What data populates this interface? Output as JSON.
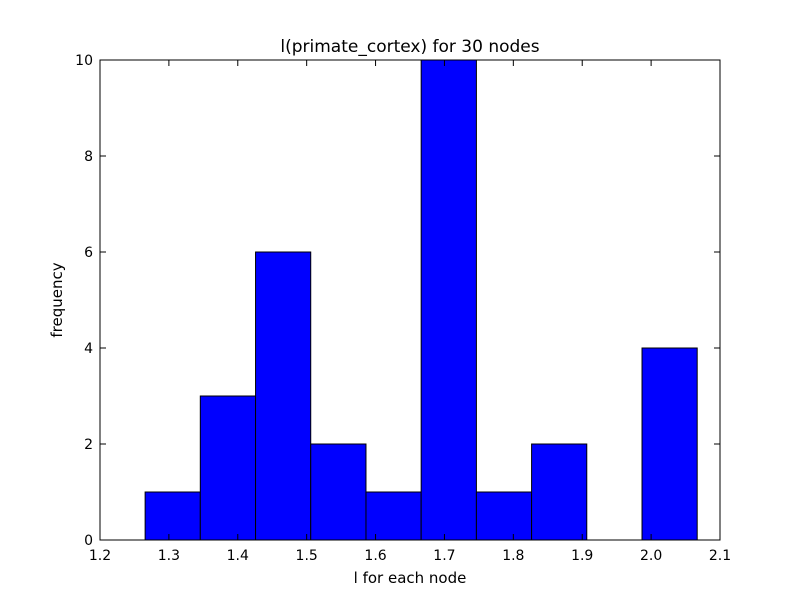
{
  "chart_data": {
    "type": "bar",
    "title": "l(primate_cortex) for 30 nodes",
    "xlabel": "l for each node",
    "ylabel": "frequency",
    "xlim": [
      1.2,
      2.1
    ],
    "ylim": [
      0,
      10
    ],
    "xticks": [
      1.2,
      1.3,
      1.4,
      1.5,
      1.6,
      1.7,
      1.8,
      1.9,
      2.0,
      2.1
    ],
    "yticks": [
      0,
      2,
      4,
      6,
      8,
      10
    ],
    "xtick_labels": [
      "1.2",
      "1.3",
      "1.4",
      "1.5",
      "1.6",
      "1.7",
      "1.8",
      "1.9",
      "2.0",
      "2.1"
    ],
    "ytick_labels": [
      "0",
      "2",
      "4",
      "6",
      "8",
      "10"
    ],
    "bin_edges": [
      1.2655,
      1.3456,
      1.4258,
      1.5059,
      1.5861,
      1.6662,
      1.7464,
      1.8265,
      1.9066,
      1.9868,
      2.0669
    ],
    "values": [
      1,
      3,
      6,
      2,
      1,
      10,
      1,
      2,
      0,
      4
    ],
    "bar_color": "#0000ff",
    "grid": false
  }
}
